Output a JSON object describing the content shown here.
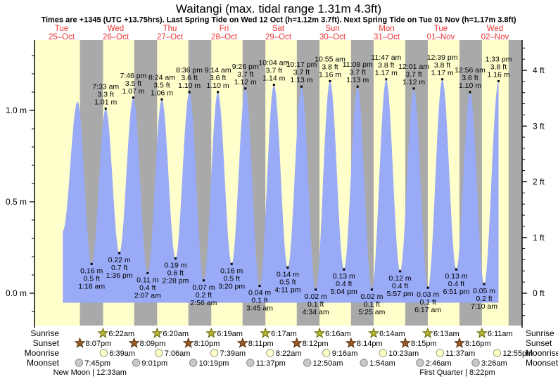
{
  "title": "Waitangi (max. tidal range 1.31m 4.3ft)",
  "subtitle": "Times are +1345 (UTC +13.75hrs). Last Spring Tide on Wed 12 Oct (h=1.12m 3.7ft). Next Spring Tide on Tue 01 Nov (h=1.17m 3.8ft)",
  "colors": {
    "day_band": "#ffffcc",
    "night_band": "#a9a9a9",
    "tide_fill": "#99aaf7",
    "day_label_red": "#ee3333",
    "text": "#000000",
    "sunrise_star_fill": "#b5b533",
    "sunrise_star_stroke": "#6b6b10",
    "sunset_star_fill": "#9c5c28",
    "sunset_star_stroke": "#53300e",
    "moonrise_circle_fill": "#ffffcc",
    "moonrise_circle_stroke": "#9a9a7a",
    "moonset_circle_fill": "#c8c8c8",
    "moonset_circle_stroke": "#888888"
  },
  "days": [
    {
      "name": "Tue",
      "date": "25–Oct"
    },
    {
      "name": "Wed",
      "date": "26–Oct"
    },
    {
      "name": "Thu",
      "date": "27–Oct"
    },
    {
      "name": "Fri",
      "date": "28–Oct"
    },
    {
      "name": "Sat",
      "date": "29–Oct"
    },
    {
      "name": "Sun",
      "date": "30–Oct"
    },
    {
      "name": "Mon",
      "date": "31–Oct"
    },
    {
      "name": "Tue",
      "date": "01–Nov"
    },
    {
      "name": "Wed",
      "date": "02–Nov"
    }
  ],
  "chart_data": {
    "type": "area",
    "title": "Waitangi (max. tidal range 1.31m 4.3ft)",
    "x_axis": {
      "unit": "days",
      "start": "Tue 25-Oct 00:00",
      "hours_span": 216,
      "grid": false
    },
    "y_axis_left": {
      "tick_labels": [
        "0.0 m",
        "0.5 m",
        "1.0 m"
      ],
      "tick_values_m": [
        0.0,
        0.5,
        1.0
      ],
      "minor_step_m": 0.1,
      "range_m": [
        -0.17,
        1.39
      ]
    },
    "y_axis_right": {
      "tick_labels": [
        "0 ft",
        "1 ft",
        "2 ft",
        "3 ft",
        "4 ft"
      ],
      "tick_values_ft": [
        0,
        1,
        2,
        3,
        4
      ],
      "minor_step_ft": 0.2
    },
    "series_start": {
      "t": 12.55,
      "m": 0.34
    },
    "baseline_m": -0.052,
    "tide_events": [
      {
        "kind": "high",
        "t": 19.1,
        "m": 1.05,
        "labeled": false
      },
      {
        "kind": "low",
        "t": 25.3,
        "m": 0.16,
        "labeled": true,
        "time": "1:18 am",
        "ft_label": "0.5 ft",
        "m_label": "0.16 m"
      },
      {
        "kind": "high",
        "t": 31.55,
        "m": 1.01,
        "labeled": true,
        "time": "7:33 am",
        "ft_label": "3.3 ft",
        "m_label": "1.01 m"
      },
      {
        "kind": "low",
        "t": 37.6,
        "m": 0.22,
        "labeled": true,
        "time": "1:36 pm",
        "ft_label": "0.7 ft",
        "m_label": "0.22 m"
      },
      {
        "kind": "high",
        "t": 43.77,
        "m": 1.07,
        "labeled": true,
        "time": "7:46 pm",
        "ft_label": "3.5 ft",
        "m_label": "1.07 m"
      },
      {
        "kind": "low",
        "t": 50.12,
        "m": 0.11,
        "labeled": true,
        "time": "2:07 am",
        "ft_label": "0.4 ft",
        "m_label": "0.11 m"
      },
      {
        "kind": "high",
        "t": 56.4,
        "m": 1.06,
        "labeled": true,
        "time": "8:24 am",
        "ft_label": "3.5 ft",
        "m_label": "1.06 m"
      },
      {
        "kind": "low",
        "t": 62.47,
        "m": 0.19,
        "labeled": true,
        "time": "2:28 pm",
        "ft_label": "0.6 ft",
        "m_label": "0.19 m"
      },
      {
        "kind": "high",
        "t": 68.6,
        "m": 1.1,
        "labeled": true,
        "time": "8:36 pm",
        "ft_label": "3.6 ft",
        "m_label": "1.10 m"
      },
      {
        "kind": "low",
        "t": 74.93,
        "m": 0.07,
        "labeled": true,
        "time": "2:56 am",
        "ft_label": "0.2 ft",
        "m_label": "0.07 m"
      },
      {
        "kind": "high",
        "t": 81.23,
        "m": 1.1,
        "labeled": true,
        "time": "9:14 am",
        "ft_label": "3.6 ft",
        "m_label": "1.10 m"
      },
      {
        "kind": "low",
        "t": 87.33,
        "m": 0.16,
        "labeled": true,
        "time": "3:20 pm",
        "ft_label": "0.5 ft",
        "m_label": "0.16 m"
      },
      {
        "kind": "high",
        "t": 93.43,
        "m": 1.12,
        "labeled": true,
        "time": "9:26 pm",
        "ft_label": "3.7 ft",
        "m_label": "1.12 m"
      },
      {
        "kind": "low",
        "t": 99.75,
        "m": 0.04,
        "labeled": true,
        "time": "3:45 am",
        "ft_label": "0.1 ft",
        "m_label": "0.04 m"
      },
      {
        "kind": "high",
        "t": 106.07,
        "m": 1.14,
        "labeled": true,
        "time": "10:04 am",
        "ft_label": "3.7 ft",
        "m_label": "1.14 m"
      },
      {
        "kind": "low",
        "t": 112.18,
        "m": 0.14,
        "labeled": true,
        "time": "4:11 pm",
        "ft_label": "0.5 ft",
        "m_label": "0.14 m"
      },
      {
        "kind": "high",
        "t": 118.28,
        "m": 1.13,
        "labeled": true,
        "time": "10:17 pm",
        "ft_label": "3.7 ft",
        "m_label": "1.13 m"
      },
      {
        "kind": "low",
        "t": 124.57,
        "m": 0.02,
        "labeled": true,
        "time": "4:34 am",
        "ft_label": "0.1 ft",
        "m_label": "0.02 m"
      },
      {
        "kind": "high",
        "t": 130.92,
        "m": 1.16,
        "labeled": true,
        "time": "10:55 am",
        "ft_label": "3.8 ft",
        "m_label": "1.16 m"
      },
      {
        "kind": "low",
        "t": 137.07,
        "m": 0.13,
        "labeled": true,
        "time": "5:04 pm",
        "ft_label": "0.4 ft",
        "m_label": "0.13 m"
      },
      {
        "kind": "high",
        "t": 143.13,
        "m": 1.13,
        "labeled": true,
        "time": "11:08 pm",
        "ft_label": "3.7 ft",
        "m_label": "1.13 m"
      },
      {
        "kind": "low",
        "t": 149.42,
        "m": 0.02,
        "labeled": true,
        "time": "5:25 am",
        "ft_label": "0.1 ft",
        "m_label": "0.02 m"
      },
      {
        "kind": "high",
        "t": 155.78,
        "m": 1.17,
        "labeled": true,
        "time": "11:47 am",
        "ft_label": "3.8 ft",
        "m_label": "1.17 m"
      },
      {
        "kind": "low",
        "t": 161.95,
        "m": 0.12,
        "labeled": true,
        "time": "5:57 pm",
        "ft_label": "0.4 ft",
        "m_label": "0.12 m"
      },
      {
        "kind": "high",
        "t": 168.02,
        "m": 1.12,
        "labeled": true,
        "time": "12:01 am",
        "ft_label": "3.7 ft",
        "m_label": "1.12 m"
      },
      {
        "kind": "low",
        "t": 174.28,
        "m": 0.03,
        "labeled": true,
        "time": "6:17 am",
        "ft_label": "0.1 ft",
        "m_label": "0.03 m"
      },
      {
        "kind": "high",
        "t": 180.65,
        "m": 1.17,
        "labeled": true,
        "time": "12:39 pm",
        "ft_label": "3.8 ft",
        "m_label": "1.17 m"
      },
      {
        "kind": "low",
        "t": 186.85,
        "m": 0.13,
        "labeled": true,
        "time": "6:51 pm",
        "ft_label": "0.4 ft",
        "m_label": "0.13 m"
      },
      {
        "kind": "high",
        "t": 192.93,
        "m": 1.1,
        "labeled": true,
        "time": "12:56 am",
        "ft_label": "3.6 ft",
        "m_label": "1.10 m"
      },
      {
        "kind": "low",
        "t": 199.17,
        "m": 0.05,
        "labeled": true,
        "time": "7:10 am",
        "ft_label": "0.2 ft",
        "m_label": "0.05 m"
      },
      {
        "kind": "high",
        "t": 205.55,
        "m": 1.16,
        "labeled": true,
        "time": "1:33 pm",
        "ft_label": "3.8 ft",
        "m_label": "1.16 m"
      }
    ]
  },
  "sun_moon": {
    "rows": [
      {
        "id": "sunrise",
        "label": "Sunrise",
        "icon": "sunrise-star-icon",
        "events": [
          {
            "time": "6:22am",
            "t": 30.367
          },
          {
            "time": "6:20am",
            "t": 54.333
          },
          {
            "time": "6:19am",
            "t": 78.317
          },
          {
            "time": "6:17am",
            "t": 102.283
          },
          {
            "time": "6:16am",
            "t": 126.267
          },
          {
            "time": "6:14am",
            "t": 150.233
          },
          {
            "time": "6:13am",
            "t": 174.217
          },
          {
            "time": "6:11am",
            "t": 198.183
          }
        ]
      },
      {
        "id": "sunset",
        "label": "Sunset",
        "icon": "sunset-star-icon",
        "events": [
          {
            "time": "8:07pm",
            "t": 20.117
          },
          {
            "time": "8:09pm",
            "t": 44.15
          },
          {
            "time": "8:10pm",
            "t": 68.167
          },
          {
            "time": "8:11pm",
            "t": 92.183
          },
          {
            "time": "8:12pm",
            "t": 116.2
          },
          {
            "time": "8:14pm",
            "t": 140.233
          },
          {
            "time": "8:15pm",
            "t": 164.25
          },
          {
            "time": "8:16pm",
            "t": 188.267
          }
        ]
      },
      {
        "id": "moonrise",
        "label": "Moonrise",
        "icon": "moonrise-circle-icon",
        "events": [
          {
            "time": "6:39am",
            "t": 30.65
          },
          {
            "time": "7:06am",
            "t": 55.1
          },
          {
            "time": "7:39am",
            "t": 79.65
          },
          {
            "time": "8:22am",
            "t": 104.367
          },
          {
            "time": "9:16am",
            "t": 129.267
          },
          {
            "time": "10:23am",
            "t": 154.383
          },
          {
            "time": "11:37am",
            "t": 179.617
          },
          {
            "time": "12:55pm",
            "t": 204.917
          }
        ]
      },
      {
        "id": "moonset",
        "label": "Moonset",
        "icon": "moonset-circle-icon",
        "events": [
          {
            "time": "7:45pm",
            "t": 19.75
          },
          {
            "time": "9:01pm",
            "t": 45.017
          },
          {
            "time": "10:19pm",
            "t": 70.317
          },
          {
            "time": "11:37pm",
            "t": 95.617
          },
          {
            "time": "12:50am",
            "t": 120.833
          },
          {
            "time": "1:54am",
            "t": 145.9
          },
          {
            "time": "2:46am",
            "t": 170.767
          },
          {
            "time": "3:26am",
            "t": 195.433
          }
        ]
      }
    ],
    "phases": [
      {
        "label": "New Moon | 12:33am",
        "t": 24.55
      },
      {
        "label": "First Quarter | 8:22pm",
        "t": 188.37
      }
    ]
  }
}
